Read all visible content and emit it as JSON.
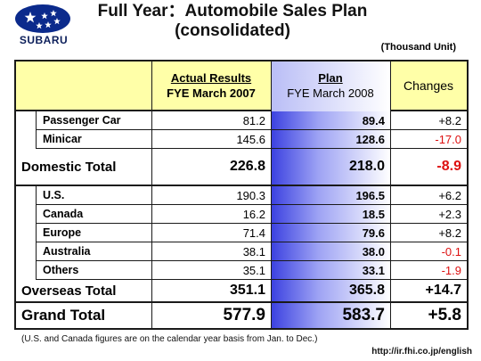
{
  "brand": {
    "name": "SUBARU",
    "emblem": "subaru-stars-emblem",
    "emblem_color": "#0b2a8c"
  },
  "title": {
    "line1": "Full Year：Automobile Sales Plan",
    "line2": "(consolidated)"
  },
  "unit": "(Thousand Unit)",
  "table": {
    "headers": {
      "actual": {
        "title": "Actual Results",
        "sub": "FYE March 2007"
      },
      "plan": {
        "title": "Plan",
        "sub": "FYE March 2008"
      },
      "changes": "Changes"
    },
    "domestic": {
      "items": [
        {
          "label": "Passenger Car",
          "actual": "81.2",
          "plan": "89.4",
          "change": "+8.2",
          "negative": false
        },
        {
          "label": "Minicar",
          "actual": "145.6",
          "plan": "128.6",
          "change": "-17.0",
          "negative": true
        }
      ],
      "total": {
        "label": "Domestic Total",
        "actual": "226.8",
        "plan": "218.0",
        "change": "-8.9",
        "negative": true
      }
    },
    "overseas": {
      "items": [
        {
          "label": "U.S.",
          "actual": "190.3",
          "plan": "196.5",
          "change": "+6.2",
          "negative": false
        },
        {
          "label": "Canada",
          "actual": "16.2",
          "plan": "18.5",
          "change": "+2.3",
          "negative": false
        },
        {
          "label": "Europe",
          "actual": "71.4",
          "plan": "79.6",
          "change": "+8.2",
          "negative": false
        },
        {
          "label": "Australia",
          "actual": "38.1",
          "plan": "38.0",
          "change": "-0.1",
          "negative": true
        },
        {
          "label": "Others",
          "actual": "35.1",
          "plan": "33.1",
          "change": "-1.9",
          "negative": true
        }
      ],
      "total": {
        "label": "Overseas Total",
        "actual": "351.1",
        "plan": "365.8",
        "change": "+14.7",
        "negative": false
      }
    },
    "grand_total": {
      "label": "Grand Total",
      "actual": "577.9",
      "plan": "583.7",
      "change": "+5.8",
      "negative": false
    },
    "colors": {
      "header_bg": "#ffffa8",
      "plan_gradient_dark": "#3a40e0",
      "negative": "#dd1010"
    }
  },
  "footnote": "(U.S. and Canada figures are on the calendar year basis from Jan. to Dec.)",
  "url": "http://ir.fhi.co.jp/english"
}
